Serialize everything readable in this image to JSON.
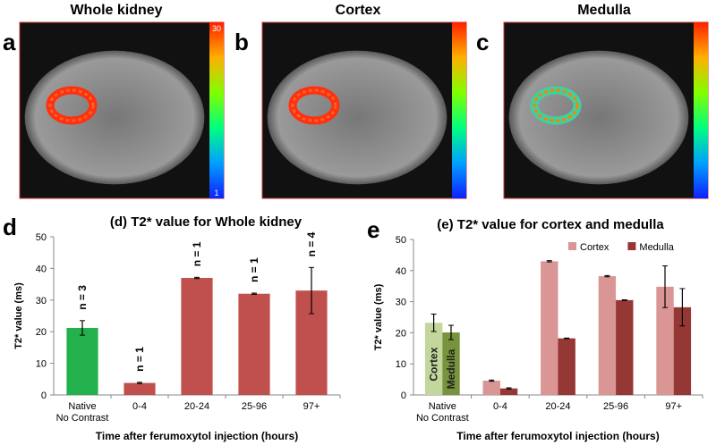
{
  "panels": [
    {
      "label": "a",
      "title": "Whole kidney",
      "colorbar_max": "30",
      "colorbar_min": "1"
    },
    {
      "label": "b",
      "title": "Cortex"
    },
    {
      "label": "c",
      "title": "Medulla"
    }
  ],
  "chart_data": [
    {
      "type": "bar",
      "panel_label": "d",
      "title": "(d) T2* value for Whole kidney",
      "y_label": "T2* value (ms)",
      "x_label": "Time after ferumoxytol injection (hours)",
      "categories": [
        "Native\nNo Contrast",
        "0-4",
        "20-24",
        "25-96",
        "97+"
      ],
      "values": [
        21.2,
        3.8,
        37,
        32,
        33
      ],
      "errors": [
        2.3,
        0.2,
        0.2,
        0.2,
        7.3
      ],
      "colors": [
        "#22b14c",
        "#c0504d",
        "#c0504d",
        "#c0504d",
        "#c0504d"
      ],
      "annotations": [
        "n = 3",
        "n = 1",
        "n = 1",
        "n = 1",
        "n = 4"
      ],
      "ylim": [
        0,
        50
      ],
      "yticks": [
        0,
        10,
        20,
        30,
        40,
        50
      ]
    },
    {
      "type": "bar",
      "panel_label": "e",
      "title": "(e) T2* value for cortex and medulla",
      "y_label": "T2* value (ms)",
      "x_label": "Time after ferumoxytol injection (hours)",
      "categories": [
        "Native\nNo Contrast",
        "0-4",
        "20-24",
        "25-96",
        "97+"
      ],
      "series": [
        {
          "name": "Cortex",
          "color": "#d99694",
          "values": [
            23.2,
            4.6,
            43,
            38.2,
            34.8
          ],
          "errors": [
            2.8,
            0.2,
            0.2,
            0.2,
            6.7
          ],
          "colors": [
            "#c3d69b",
            "#d99694",
            "#d99694",
            "#d99694",
            "#d99694"
          ],
          "bar_labels": [
            "Cortex",
            null,
            null,
            null,
            null
          ]
        },
        {
          "name": "Medulla",
          "color": "#953735",
          "values": [
            20.1,
            2.1,
            18.2,
            30.5,
            28.2
          ],
          "errors": [
            2.3,
            0.2,
            0.1,
            0.1,
            6
          ],
          "colors": [
            "#77933c",
            "#953735",
            "#953735",
            "#953735",
            "#953735"
          ],
          "bar_labels": [
            "Medulla",
            null,
            null,
            null,
            null
          ]
        }
      ],
      "legend": "top-right",
      "ylim": [
        0,
        50
      ],
      "yticks": [
        0,
        10,
        20,
        30,
        40,
        50
      ]
    }
  ]
}
